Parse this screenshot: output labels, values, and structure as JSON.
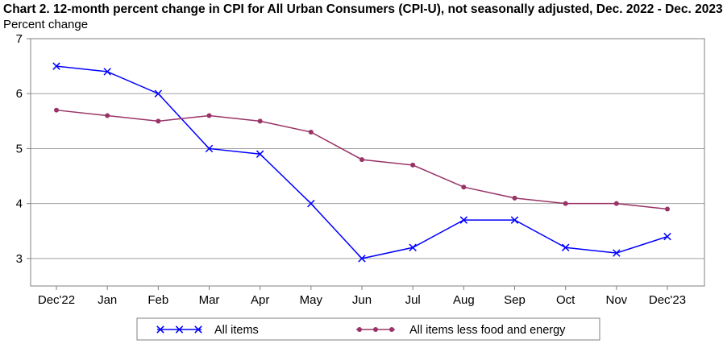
{
  "chart_data": {
    "type": "line",
    "title": "Chart 2. 12-month percent change in CPI for All Urban Consumers (CPI-U), not seasonally adjusted, Dec. 2022 - Dec. 2023",
    "ylabel": "Percent change",
    "xlabel": "",
    "categories": [
      "Dec'22",
      "Jan",
      "Feb",
      "Mar",
      "Apr",
      "May",
      "Jun",
      "Jul",
      "Aug",
      "Sep",
      "Oct",
      "Nov",
      "Dec'23"
    ],
    "ylim": [
      2.5,
      7
    ],
    "yticks": [
      3,
      4,
      5,
      6,
      7
    ],
    "grid": true,
    "legend_position": "bottom",
    "series": [
      {
        "name": "All items",
        "color": "#0000ff",
        "marker": "x",
        "values": [
          6.5,
          6.4,
          6.0,
          5.0,
          4.9,
          4.0,
          3.0,
          3.2,
          3.7,
          3.7,
          3.2,
          3.1,
          3.4
        ]
      },
      {
        "name": "All items less food and energy",
        "color": "#993366",
        "marker": "circle",
        "values": [
          5.7,
          5.6,
          5.5,
          5.6,
          5.5,
          5.3,
          4.8,
          4.7,
          4.3,
          4.1,
          4.0,
          4.0,
          3.9
        ]
      }
    ]
  }
}
